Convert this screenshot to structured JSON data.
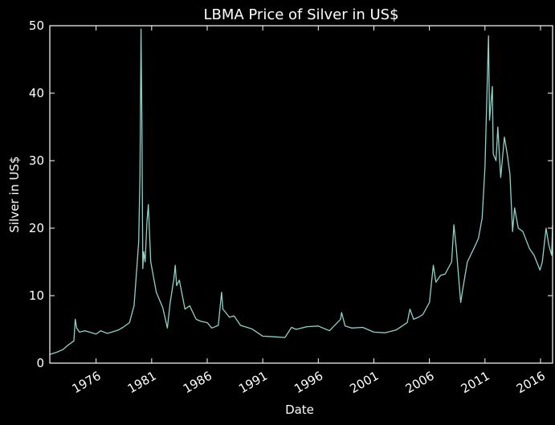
{
  "chart_data": {
    "type": "line",
    "title": "LBMA Price of Silver in US$",
    "xlabel": "Date",
    "ylabel": "Silver in US$",
    "x_range": [
      "1971-11-01",
      "2017-02-01"
    ],
    "ylim": [
      0,
      50
    ],
    "x_ticks": [
      "1976",
      "1981",
      "1986",
      "1991",
      "1996",
      "2001",
      "2006",
      "2011",
      "2016"
    ],
    "y_ticks": [
      "0",
      "10",
      "20",
      "30",
      "40",
      "50"
    ],
    "grid": false,
    "legend": "none",
    "colors": {
      "background": "#000000",
      "axes": "#ffffff",
      "text": "#ffffff",
      "line": "#8dd3c7"
    },
    "series": [
      {
        "x": [
          "1971-11-01",
          "1972-06-01",
          "1973-01-01",
          "1973-06-01",
          "1974-01-01",
          "1974-02-15",
          "1974-04-01",
          "1974-07-01",
          "1975-01-01",
          "1975-06-01",
          "1976-01-01",
          "1976-06-01",
          "1977-01-01",
          "1977-06-01",
          "1978-01-01",
          "1978-06-01",
          "1979-01-01",
          "1979-06-01",
          "1979-09-15",
          "1979-11-01",
          "1979-12-15",
          "1980-01-18",
          "1980-02-15",
          "1980-03-15",
          "1980-04-15",
          "1980-06-01",
          "1980-08-01",
          "1980-09-15",
          "1980-10-15",
          "1980-12-01",
          "1981-06-01",
          "1982-01-01",
          "1982-06-01",
          "1982-09-01",
          "1983-01-01",
          "1983-02-15",
          "1983-04-01",
          "1983-07-01",
          "1984-01-01",
          "1984-06-01",
          "1985-01-01",
          "1985-06-01",
          "1986-01-01",
          "1986-06-01",
          "1987-01-01",
          "1987-04-20",
          "1987-06-01",
          "1987-09-01",
          "1988-01-01",
          "1988-06-01",
          "1989-01-01",
          "1990-01-01",
          "1991-01-01",
          "1992-01-01",
          "1993-01-01",
          "1993-08-01",
          "1994-01-01",
          "1995-01-01",
          "1996-01-01",
          "1997-01-01",
          "1998-01-01",
          "1998-02-05",
          "1998-06-01",
          "1999-01-01",
          "2000-01-01",
          "2001-01-01",
          "2002-01-01",
          "2003-01-01",
          "2004-01-01",
          "2004-04-01",
          "2004-08-01",
          "2005-01-01",
          "2005-06-01",
          "2006-01-01",
          "2006-05-10",
          "2006-08-01",
          "2007-01-01",
          "2007-06-01",
          "2008-01-01",
          "2008-03-15",
          "2008-06-01",
          "2008-10-25",
          "2009-01-01",
          "2009-06-01",
          "2010-01-01",
          "2010-06-01",
          "2010-10-01",
          "2011-01-01",
          "2011-04-28",
          "2011-06-01",
          "2011-09-01",
          "2011-10-01",
          "2012-01-01",
          "2012-02-28",
          "2012-06-01",
          "2012-10-01",
          "2013-01-01",
          "2013-04-01",
          "2013-06-28",
          "2013-09-01",
          "2014-01-01",
          "2014-06-01",
          "2015-01-01",
          "2015-06-01",
          "2015-12-15",
          "2016-03-01",
          "2016-07-01",
          "2016-10-01",
          "2017-01-01",
          "2017-02-01"
        ],
        "y": [
          1.3,
          1.6,
          2.0,
          2.6,
          3.3,
          6.5,
          5.2,
          4.6,
          4.8,
          4.6,
          4.3,
          4.8,
          4.4,
          4.6,
          4.9,
          5.3,
          6.0,
          8.5,
          15.0,
          18.0,
          28.0,
          49.5,
          35.0,
          14.0,
          16.5,
          15.0,
          21.0,
          23.5,
          20.0,
          15.0,
          10.5,
          8.2,
          5.2,
          9.0,
          12.5,
          14.5,
          11.5,
          12.3,
          8.0,
          8.5,
          6.5,
          6.2,
          6.0,
          5.2,
          5.6,
          10.5,
          8.0,
          7.5,
          6.8,
          7.0,
          5.6,
          5.1,
          4.0,
          3.9,
          3.8,
          5.3,
          5.0,
          5.4,
          5.5,
          4.8,
          6.5,
          7.5,
          5.5,
          5.2,
          5.3,
          4.6,
          4.5,
          4.9,
          6.0,
          8.0,
          6.5,
          6.8,
          7.2,
          9.0,
          14.5,
          12.0,
          13.0,
          13.2,
          15.0,
          20.5,
          17.0,
          9.0,
          11.0,
          15.0,
          17.0,
          18.5,
          21.5,
          29.0,
          48.5,
          36.0,
          41.0,
          31.0,
          30.0,
          35.0,
          27.5,
          33.5,
          31.0,
          28.0,
          19.5,
          23.0,
          20.0,
          19.5,
          17.0,
          16.0,
          13.8,
          15.0,
          20.0,
          17.5,
          16.0,
          20.5
        ]
      }
    ]
  }
}
